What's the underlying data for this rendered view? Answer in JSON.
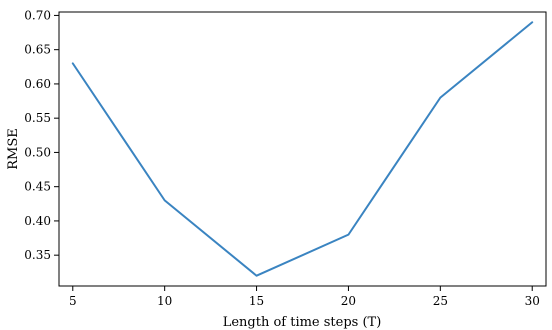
{
  "chart_data": {
    "type": "line",
    "title": "",
    "xlabel": "Length of time steps (T)",
    "ylabel": "RMSE",
    "x": [
      5,
      10,
      15,
      20,
      25,
      30
    ],
    "series": [
      {
        "values": [
          0.63,
          0.43,
          0.32,
          0.38,
          0.58,
          0.69
        ]
      }
    ],
    "xlim": [
      4.25,
      30.75
    ],
    "ylim": [
      0.305,
      0.705
    ],
    "xticks": [
      5,
      10,
      15,
      20,
      25,
      30
    ],
    "xtick_labels": [
      "5",
      "10",
      "15",
      "20",
      "25",
      "30"
    ],
    "yticks": [
      0.35,
      0.4,
      0.45,
      0.5,
      0.55,
      0.6,
      0.65,
      0.7
    ],
    "ytick_labels": [
      "0.35",
      "0.40",
      "0.45",
      "0.50",
      "0.55",
      "0.60",
      "0.65",
      "0.70"
    ],
    "grid": false,
    "line_color": "#3a84c1"
  }
}
